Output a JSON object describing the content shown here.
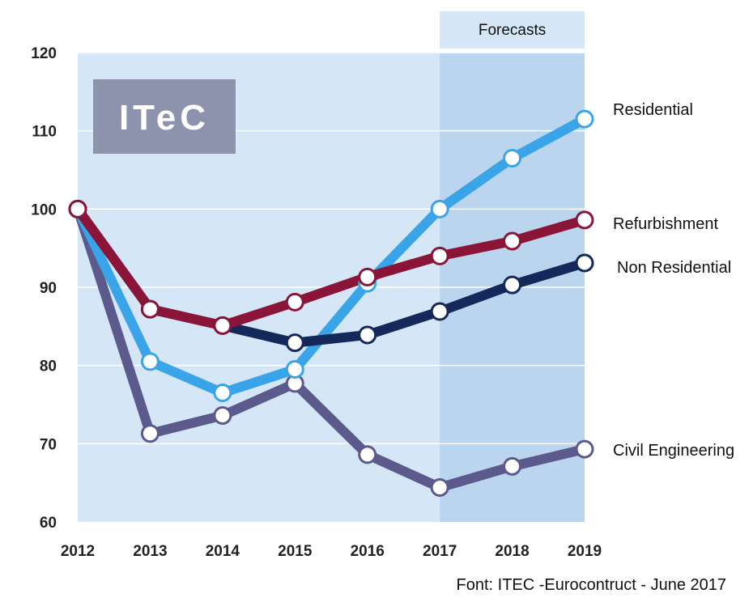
{
  "chart_data": {
    "type": "line",
    "x": [
      2012,
      2013,
      2014,
      2015,
      2016,
      2017,
      2018,
      2019
    ],
    "ylim": [
      60,
      120
    ],
    "yticks": [
      60,
      70,
      80,
      90,
      100,
      110,
      120
    ],
    "grid": true,
    "forecast_region": {
      "label": "Forecasts",
      "from": 2017,
      "to": 2019
    },
    "logo": "ITeC",
    "source_note": "Font: ITEC -Eurocontruct - June 2017",
    "series": [
      {
        "name": "Residential",
        "color": "#3aa4e8",
        "values": [
          100,
          80.5,
          76.5,
          79.5,
          90.5,
          100,
          106.5,
          111.5
        ]
      },
      {
        "name": "Refurbishment",
        "color": "#8a1538",
        "values": [
          100,
          87.2,
          85.1,
          88.1,
          91.3,
          94,
          95.9,
          98.6
        ]
      },
      {
        "name": "Non Residential",
        "color": "#14285a",
        "values": [
          100,
          87.2,
          85.1,
          82.9,
          83.9,
          86.9,
          90.3,
          93.1
        ]
      },
      {
        "name": "Civil Engineering",
        "color": "#5c5a8c",
        "values": [
          100,
          71.3,
          73.6,
          77.7,
          68.6,
          64.4,
          67.1,
          69.3
        ]
      }
    ]
  }
}
